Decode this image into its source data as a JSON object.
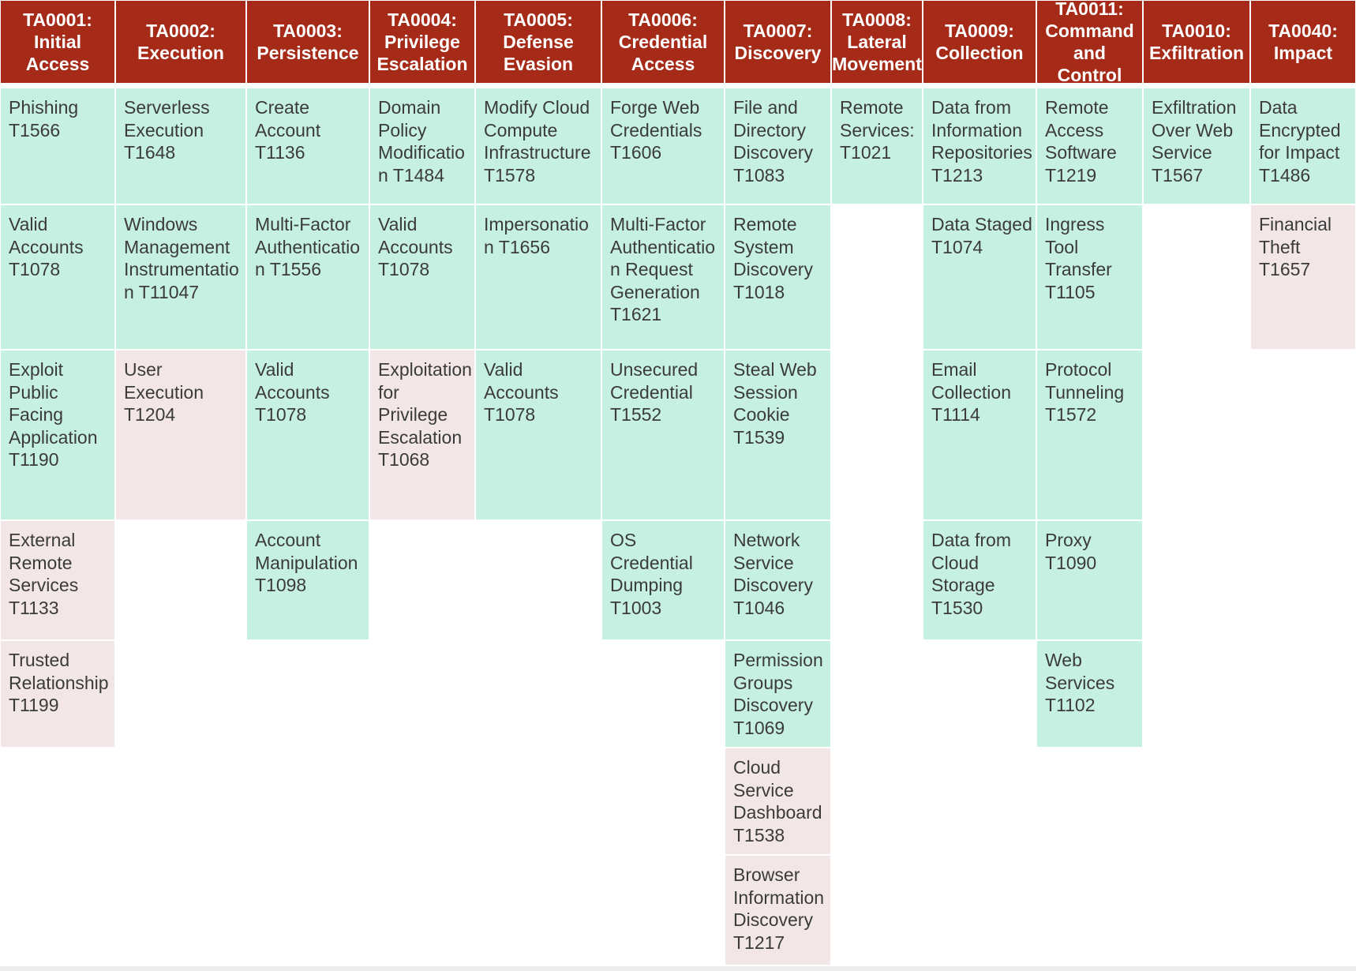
{
  "colors": {
    "header": "#a52a17",
    "teal": "#c6f0e1",
    "pink": "#f2e6e6"
  },
  "tactics": [
    {
      "label": "TA0001:\nInitial\nAccess",
      "techniques": [
        {
          "label": "Phishing\nT1566",
          "color": "teal"
        },
        {
          "label": "Valid\nAccounts\nT1078",
          "color": "teal"
        },
        {
          "label": "Exploit\nPublic\nFacing\nApplication\nT1190",
          "color": "teal"
        },
        {
          "label": "External\nRemote\nServices\nT1133",
          "color": "pink"
        },
        {
          "label": "Trusted\nRelationship\nT1199",
          "color": "pink"
        }
      ]
    },
    {
      "label": "TA0002:\nExecution",
      "techniques": [
        {
          "label": "Serverless\nExecution\nT1648",
          "color": "teal"
        },
        {
          "label": "Windows\nManagement\nInstrumentatio\nn T11047",
          "color": "teal"
        },
        {
          "label": "User\nExecution\nT1204",
          "color": "pink"
        }
      ]
    },
    {
      "label": "TA0003:\nPersistence",
      "techniques": [
        {
          "label": "Create\nAccount\nT1136",
          "color": "teal"
        },
        {
          "label": "Multi-Factor\nAuthenticatio\nn T1556",
          "color": "teal"
        },
        {
          "label": "Valid\nAccounts\nT1078",
          "color": "teal"
        },
        {
          "label": "Account\nManipulation\nT1098",
          "color": "teal"
        }
      ]
    },
    {
      "label": "TA0004:\nPrivilege\nEscalation",
      "techniques": [
        {
          "label": "Domain\nPolicy\nModificatio\nn T1484",
          "color": "teal"
        },
        {
          "label": "Valid\nAccounts\nT1078",
          "color": "teal"
        },
        {
          "label": "Exploitation\nfor\nPrivilege\nEscalation\nT1068",
          "color": "pink"
        }
      ]
    },
    {
      "label": "TA0005:\nDefense\nEvasion",
      "techniques": [
        {
          "label": "Modify Cloud\nCompute\nInfrastructure\nT1578",
          "color": "teal"
        },
        {
          "label": "Impersonatio\nn T1656",
          "color": "teal"
        },
        {
          "label": "Valid\nAccounts\nT1078",
          "color": "teal"
        }
      ]
    },
    {
      "label": "TA0006:\nCredential\nAccess",
      "techniques": [
        {
          "label": "Forge Web\nCredentials\nT1606",
          "color": "teal"
        },
        {
          "label": "Multi-Factor\nAuthenticatio\nn Request\nGeneration\nT1621",
          "color": "teal"
        },
        {
          "label": "Unsecured\nCredential\nT1552",
          "color": "teal"
        },
        {
          "label": "OS\nCredential\nDumping\nT1003",
          "color": "teal"
        }
      ]
    },
    {
      "label": "TA0007:\nDiscovery",
      "techniques": [
        {
          "label": "File and\nDirectory\nDiscovery\nT1083",
          "color": "teal"
        },
        {
          "label": "Remote\nSystem\nDiscovery\nT1018",
          "color": "teal"
        },
        {
          "label": "Steal Web\nSession\nCookie\nT1539",
          "color": "teal"
        },
        {
          "label": "Network\nService\nDiscovery\nT1046",
          "color": "teal"
        },
        {
          "label": "Permission\nGroups\nDiscovery\nT1069",
          "color": "teal"
        },
        {
          "label": "Cloud\nService\nDashboard\nT1538",
          "color": "pink"
        },
        {
          "label": "Browser\nInformation\nDiscovery\nT1217",
          "color": "pink"
        }
      ]
    },
    {
      "label": "TA0008:\nLateral\nMovement",
      "techniques": [
        {
          "label": "Remote\nServices:\nT1021",
          "color": "teal"
        }
      ]
    },
    {
      "label": "TA0009:\nCollection",
      "techniques": [
        {
          "label": "Data from\nInformation\nRepositories\nT1213",
          "color": "teal"
        },
        {
          "label": "Data Staged\nT1074",
          "color": "teal"
        },
        {
          "label": "Email\nCollection\nT1114",
          "color": "teal"
        },
        {
          "label": "Data from\nCloud\nStorage\nT1530",
          "color": "teal"
        }
      ]
    },
    {
      "label": "TA0011:\nCommand\nand Control",
      "techniques": [
        {
          "label": "Remote\nAccess\nSoftware\nT1219",
          "color": "teal"
        },
        {
          "label": "Ingress\nTool\nTransfer\nT1105",
          "color": "teal"
        },
        {
          "label": "Protocol\nTunneling\nT1572",
          "color": "teal"
        },
        {
          "label": "Proxy\nT1090",
          "color": "teal"
        },
        {
          "label": "Web\nServices\nT1102",
          "color": "teal"
        }
      ]
    },
    {
      "label": "TA0010:\nExfiltration",
      "techniques": [
        {
          "label": "Exfiltration\nOver Web\nService\nT1567",
          "color": "teal"
        }
      ]
    },
    {
      "label": "TA0040:\nImpact",
      "techniques": [
        {
          "label": "Data\nEncrypted\nfor Impact\nT1486",
          "color": "teal"
        },
        {
          "label": "Financial\nTheft\nT1657",
          "color": "pink"
        }
      ]
    }
  ]
}
